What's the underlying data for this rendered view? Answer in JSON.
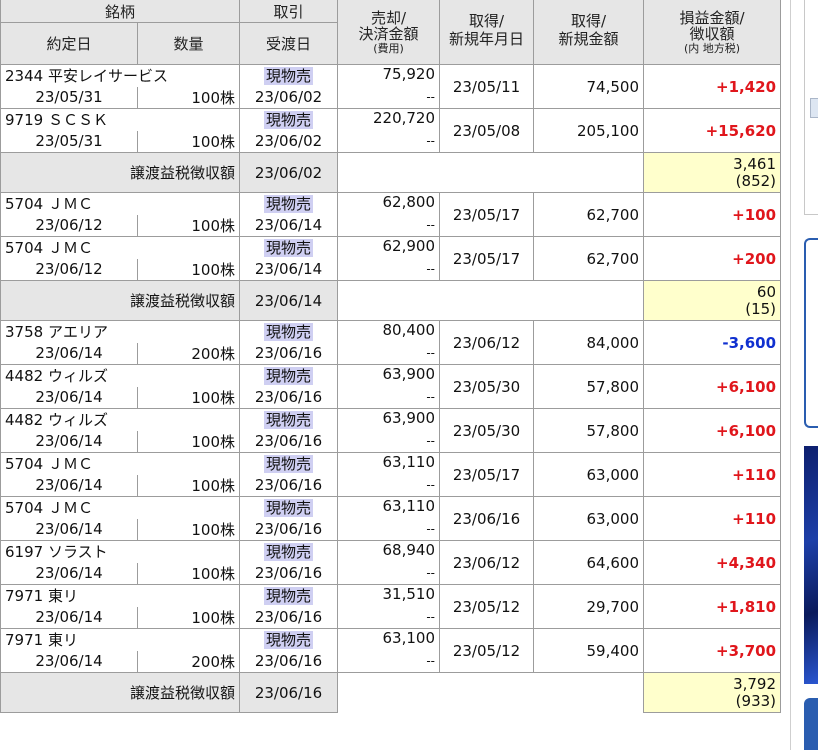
{
  "header": {
    "meigara": "銘柄",
    "torihiki": "取引",
    "baikyaku": "売却/",
    "kessai_kingaku": "決済金額",
    "hiyo": "(費用)",
    "shutoku1": "取得/",
    "shinki_nengappi": "新規年月日",
    "shutoku2": "取得/",
    "shinki_kingaku": "新規金額",
    "soneki": "損益金額/",
    "choshugaku": "徴収額",
    "uchi_chihozei": "(内 地方税)",
    "yakujobi": "約定日",
    "suryo": "数量",
    "ukewatashibi": "受渡日"
  },
  "tax_label": "譲渡益税徴収額",
  "dash": "--",
  "groups": [
    {
      "trades": [
        {
          "code_name": "2344 平安レイサービス",
          "trade_type": "現物売",
          "sell_amount": "75,920",
          "acq_date": "23/05/11",
          "acq_amount": "74,500",
          "pl": "+1,420",
          "pl_sign": "pos",
          "trade_date": "23/05/31",
          "qty": "100株",
          "settle_date": "23/06/02"
        },
        {
          "code_name": "9719 ＳＣＳＫ",
          "trade_type": "現物売",
          "sell_amount": "220,720",
          "acq_date": "23/05/08",
          "acq_amount": "205,100",
          "pl": "+15,620",
          "pl_sign": "pos",
          "trade_date": "23/05/31",
          "qty": "100株",
          "settle_date": "23/06/02"
        }
      ],
      "tax": {
        "date": "23/06/02",
        "amount": "3,461",
        "local": "(852)"
      }
    },
    {
      "trades": [
        {
          "code_name": "5704 ＪＭＣ",
          "trade_type": "現物売",
          "sell_amount": "62,800",
          "acq_date": "23/05/17",
          "acq_amount": "62,700",
          "pl": "+100",
          "pl_sign": "pos",
          "trade_date": "23/06/12",
          "qty": "100株",
          "settle_date": "23/06/14"
        },
        {
          "code_name": "5704 ＪＭＣ",
          "trade_type": "現物売",
          "sell_amount": "62,900",
          "acq_date": "23/05/17",
          "acq_amount": "62,700",
          "pl": "+200",
          "pl_sign": "pos",
          "trade_date": "23/06/12",
          "qty": "100株",
          "settle_date": "23/06/14"
        }
      ],
      "tax": {
        "date": "23/06/14",
        "amount": "60",
        "local": "(15)"
      }
    },
    {
      "trades": [
        {
          "code_name": "3758 アエリア",
          "trade_type": "現物売",
          "sell_amount": "80,400",
          "acq_date": "23/06/12",
          "acq_amount": "84,000",
          "pl": "-3,600",
          "pl_sign": "neg",
          "trade_date": "23/06/14",
          "qty": "200株",
          "settle_date": "23/06/16"
        },
        {
          "code_name": "4482 ウィルズ",
          "trade_type": "現物売",
          "sell_amount": "63,900",
          "acq_date": "23/05/30",
          "acq_amount": "57,800",
          "pl": "+6,100",
          "pl_sign": "pos",
          "trade_date": "23/06/14",
          "qty": "100株",
          "settle_date": "23/06/16"
        },
        {
          "code_name": "4482 ウィルズ",
          "trade_type": "現物売",
          "sell_amount": "63,900",
          "acq_date": "23/05/30",
          "acq_amount": "57,800",
          "pl": "+6,100",
          "pl_sign": "pos",
          "trade_date": "23/06/14",
          "qty": "100株",
          "settle_date": "23/06/16"
        },
        {
          "code_name": "5704 ＪＭＣ",
          "trade_type": "現物売",
          "sell_amount": "63,110",
          "acq_date": "23/05/17",
          "acq_amount": "63,000",
          "pl": "+110",
          "pl_sign": "pos",
          "trade_date": "23/06/14",
          "qty": "100株",
          "settle_date": "23/06/16"
        },
        {
          "code_name": "5704 ＪＭＣ",
          "trade_type": "現物売",
          "sell_amount": "63,110",
          "acq_date": "23/06/16",
          "acq_amount": "63,000",
          "pl": "+110",
          "pl_sign": "pos",
          "trade_date": "23/06/14",
          "qty": "100株",
          "settle_date": "23/06/16"
        },
        {
          "code_name": "6197 ソラスト",
          "trade_type": "現物売",
          "sell_amount": "68,940",
          "acq_date": "23/06/12",
          "acq_amount": "64,600",
          "pl": "+4,340",
          "pl_sign": "pos",
          "trade_date": "23/06/14",
          "qty": "100株",
          "settle_date": "23/06/16"
        },
        {
          "code_name": "7971 東リ",
          "trade_type": "現物売",
          "sell_amount": "31,510",
          "acq_date": "23/05/12",
          "acq_amount": "29,700",
          "pl": "+1,810",
          "pl_sign": "pos",
          "trade_date": "23/06/14",
          "qty": "100株",
          "settle_date": "23/06/16"
        },
        {
          "code_name": "7971 東リ",
          "trade_type": "現物売",
          "sell_amount": "63,100",
          "acq_date": "23/05/12",
          "acq_amount": "59,400",
          "pl": "+3,700",
          "pl_sign": "pos",
          "trade_date": "23/06/14",
          "qty": "200株",
          "settle_date": "23/06/16"
        }
      ],
      "tax": {
        "date": "23/06/16",
        "amount": "3,792",
        "local": "(933)"
      }
    }
  ],
  "colors": {
    "profit": "#e0161c",
    "loss": "#1030d0",
    "header_bg": "#e6e6e6",
    "tax_bg": "#ffffcc",
    "trade_highlight": "#cfcff2",
    "side_accent": "#2a5db0"
  }
}
